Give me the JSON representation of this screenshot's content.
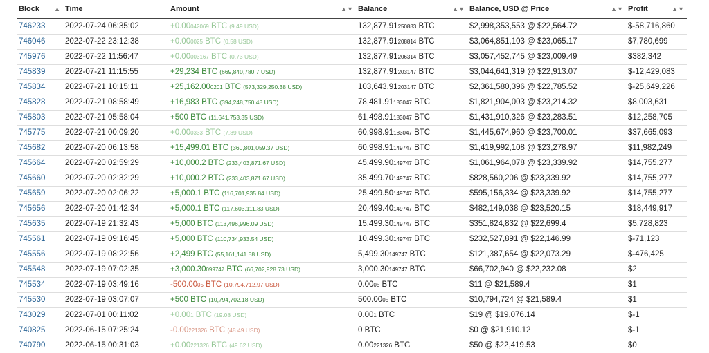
{
  "headers": [
    "Block",
    "Time",
    "Amount",
    "Balance",
    "Balance, USD @ Price",
    "Profit"
  ],
  "rows": [
    {
      "block": "746233",
      "time": "2022-07-24 06:35:02",
      "amt_main": "+0.00",
      "amt_sub": "042069",
      "amt_unit": " BTC",
      "amt_usd": "(9.49 USD)",
      "amt_style": "faint-pos",
      "bal_main": "132,877.91",
      "bal_sub": "250883",
      "bal_unit": " BTC",
      "usd_price": "$2,998,353,553 @ $22,564.72",
      "profit": "$-58,716,860"
    },
    {
      "block": "746046",
      "time": "2022-07-22 23:12:38",
      "amt_main": "+0.00",
      "amt_sub": "0025",
      "amt_unit": " BTC",
      "amt_usd": "(0.58 USD)",
      "amt_style": "faint-pos",
      "bal_main": "132,877.91",
      "bal_sub": "208814",
      "bal_unit": " BTC",
      "usd_price": "$3,064,851,103 @ $23,065.17",
      "profit": "$7,780,699"
    },
    {
      "block": "745976",
      "time": "2022-07-22 11:56:47",
      "amt_main": "+0.00",
      "amt_sub": "003167",
      "amt_unit": " BTC",
      "amt_usd": "(0.73 USD)",
      "amt_style": "faint-pos",
      "bal_main": "132,877.91",
      "bal_sub": "206314",
      "bal_unit": " BTC",
      "usd_price": "$3,057,452,745 @ $23,009.49",
      "profit": "$382,342"
    },
    {
      "block": "745839",
      "time": "2022-07-21 11:15:55",
      "amt_main": "+29,234",
      "amt_sub": "",
      "amt_unit": " BTC",
      "amt_usd": "(669,840,780.7 USD)",
      "amt_style": "pos",
      "bal_main": "132,877.91",
      "bal_sub": "203147",
      "bal_unit": " BTC",
      "usd_price": "$3,044,641,319 @ $22,913.07",
      "profit": "$-12,429,083"
    },
    {
      "block": "745834",
      "time": "2022-07-21 10:15:11",
      "amt_main": "+25,162.00",
      "amt_sub": "0201",
      "amt_unit": " BTC",
      "amt_usd": "(573,329,250.38 USD)",
      "amt_style": "pos",
      "bal_main": "103,643.91",
      "bal_sub": "203147",
      "bal_unit": " BTC",
      "usd_price": "$2,361,580,396 @ $22,785.52",
      "profit": "$-25,649,226"
    },
    {
      "block": "745828",
      "time": "2022-07-21 08:58:49",
      "amt_main": "+16,983",
      "amt_sub": "",
      "amt_unit": " BTC",
      "amt_usd": "(394,248,750.48 USD)",
      "amt_style": "pos",
      "bal_main": "78,481.91",
      "bal_sub": "183047",
      "bal_unit": " BTC",
      "usd_price": "$1,821,904,003 @ $23,214.32",
      "profit": "$8,003,631"
    },
    {
      "block": "745803",
      "time": "2022-07-21 05:58:04",
      "amt_main": "+500",
      "amt_sub": "",
      "amt_unit": " BTC",
      "amt_usd": "(11,641,753.35 USD)",
      "amt_style": "pos",
      "bal_main": "61,498.91",
      "bal_sub": "183047",
      "bal_unit": " BTC",
      "usd_price": "$1,431,910,326 @ $23,283.51",
      "profit": "$12,258,705"
    },
    {
      "block": "745775",
      "time": "2022-07-21 00:09:20",
      "amt_main": "+0.00",
      "amt_sub": "0333",
      "amt_unit": " BTC",
      "amt_usd": "(7.89 USD)",
      "amt_style": "faint-pos",
      "bal_main": "60,998.91",
      "bal_sub": "183047",
      "bal_unit": " BTC",
      "usd_price": "$1,445,674,960 @ $23,700.01",
      "profit": "$37,665,093"
    },
    {
      "block": "745682",
      "time": "2022-07-20 06:13:58",
      "amt_main": "+15,499.01",
      "amt_sub": "",
      "amt_unit": " BTC",
      "amt_usd": "(360,801,059.37 USD)",
      "amt_style": "pos",
      "bal_main": "60,998.91",
      "bal_sub": "149747",
      "bal_unit": " BTC",
      "usd_price": "$1,419,992,108 @ $23,278.97",
      "profit": "$11,982,249"
    },
    {
      "block": "745664",
      "time": "2022-07-20 02:59:29",
      "amt_main": "+10,000.2",
      "amt_sub": "",
      "amt_unit": " BTC",
      "amt_usd": "(233,403,871.67 USD)",
      "amt_style": "pos",
      "bal_main": "45,499.90",
      "bal_sub": "149747",
      "bal_unit": " BTC",
      "usd_price": "$1,061,964,078 @ $23,339.92",
      "profit": "$14,755,277"
    },
    {
      "block": "745660",
      "time": "2022-07-20 02:32:29",
      "amt_main": "+10,000.2",
      "amt_sub": "",
      "amt_unit": " BTC",
      "amt_usd": "(233,403,871.67 USD)",
      "amt_style": "pos",
      "bal_main": "35,499.70",
      "bal_sub": "149747",
      "bal_unit": " BTC",
      "usd_price": "$828,560,206 @ $23,339.92",
      "profit": "$14,755,277"
    },
    {
      "block": "745659",
      "time": "2022-07-20 02:06:22",
      "amt_main": "+5,000.1",
      "amt_sub": "",
      "amt_unit": " BTC",
      "amt_usd": "(116,701,935.84 USD)",
      "amt_style": "pos",
      "bal_main": "25,499.50",
      "bal_sub": "149747",
      "bal_unit": " BTC",
      "usd_price": "$595,156,334 @ $23,339.92",
      "profit": "$14,755,277"
    },
    {
      "block": "745656",
      "time": "2022-07-20 01:42:34",
      "amt_main": "+5,000.1",
      "amt_sub": "",
      "amt_unit": " BTC",
      "amt_usd": "(117,603,111.83 USD)",
      "amt_style": "pos",
      "bal_main": "20,499.40",
      "bal_sub": "149747",
      "bal_unit": " BTC",
      "usd_price": "$482,149,038 @ $23,520.15",
      "profit": "$18,449,917"
    },
    {
      "block": "745635",
      "time": "2022-07-19 21:32:43",
      "amt_main": "+5,000",
      "amt_sub": "",
      "amt_unit": " BTC",
      "amt_usd": "(113,496,996.09 USD)",
      "amt_style": "pos",
      "bal_main": "15,499.30",
      "bal_sub": "149747",
      "bal_unit": " BTC",
      "usd_price": "$351,824,832 @ $22,699.4",
      "profit": "$5,728,823"
    },
    {
      "block": "745561",
      "time": "2022-07-19 09:16:45",
      "amt_main": "+5,000",
      "amt_sub": "",
      "amt_unit": " BTC",
      "amt_usd": "(110,734,933.54 USD)",
      "amt_style": "pos",
      "bal_main": "10,499.30",
      "bal_sub": "149747",
      "bal_unit": " BTC",
      "usd_price": "$232,527,891 @ $22,146.99",
      "profit": "$-71,123"
    },
    {
      "block": "745556",
      "time": "2022-07-19 08:22:56",
      "amt_main": "+2,499",
      "amt_sub": "",
      "amt_unit": " BTC",
      "amt_usd": "(55,161,141.58 USD)",
      "amt_style": "pos",
      "bal_main": "5,499.30",
      "bal_sub": "149747",
      "bal_unit": " BTC",
      "usd_price": "$121,387,654 @ $22,073.29",
      "profit": "$-476,425"
    },
    {
      "block": "745548",
      "time": "2022-07-19 07:02:35",
      "amt_main": "+3,000.30",
      "amt_sub": "099747",
      "amt_unit": " BTC",
      "amt_usd": "(66,702,928.73 USD)",
      "amt_style": "pos",
      "bal_main": "3,000.30",
      "bal_sub": "149747",
      "bal_unit": " BTC",
      "usd_price": "$66,702,940 @ $22,232.08",
      "profit": "$2"
    },
    {
      "block": "745534",
      "time": "2022-07-19 03:49:16",
      "amt_main": "-500.00",
      "amt_sub": "05",
      "amt_unit": " BTC",
      "amt_usd": "(10,794,712.97 USD)",
      "amt_style": "neg",
      "bal_main": "0.00",
      "bal_sub": "05",
      "bal_unit": " BTC",
      "usd_price": "$11 @ $21,589.4",
      "profit": "$1"
    },
    {
      "block": "745530",
      "time": "2022-07-19 03:07:07",
      "amt_main": "+500",
      "amt_sub": "",
      "amt_unit": " BTC",
      "amt_usd": "(10,794,702.18 USD)",
      "amt_style": "pos",
      "bal_main": "500.00",
      "bal_sub": "05",
      "bal_unit": " BTC",
      "usd_price": "$10,794,724 @ $21,589.4",
      "profit": "$1"
    },
    {
      "block": "743029",
      "time": "2022-07-01 00:11:02",
      "amt_main": "+0.00",
      "amt_sub": "1",
      "amt_unit": " BTC",
      "amt_usd": "(19.08 USD)",
      "amt_style": "faint-pos",
      "bal_main": "0.00",
      "bal_sub": "1",
      "bal_unit": " BTC",
      "usd_price": "$19 @ $19,076.14",
      "profit": "$-1"
    },
    {
      "block": "740825",
      "time": "2022-06-15 07:25:24",
      "amt_main": "-0.00",
      "amt_sub": "221326",
      "amt_unit": " BTC",
      "amt_usd": "(48.49 USD)",
      "amt_style": "faint-neg",
      "bal_main": "0 BTC",
      "bal_sub": "",
      "bal_unit": "",
      "usd_price": "$0 @ $21,910.12",
      "profit": "$-1"
    },
    {
      "block": "740790",
      "time": "2022-06-15 00:31:03",
      "amt_main": "+0.00",
      "amt_sub": "221326",
      "amt_unit": " BTC",
      "amt_usd": "(49.62 USD)",
      "amt_style": "faint-pos",
      "bal_main": "0.00",
      "bal_sub": "221326",
      "bal_unit": " BTC",
      "usd_price": "$50 @ $22,419.53",
      "profit": "$0"
    }
  ]
}
